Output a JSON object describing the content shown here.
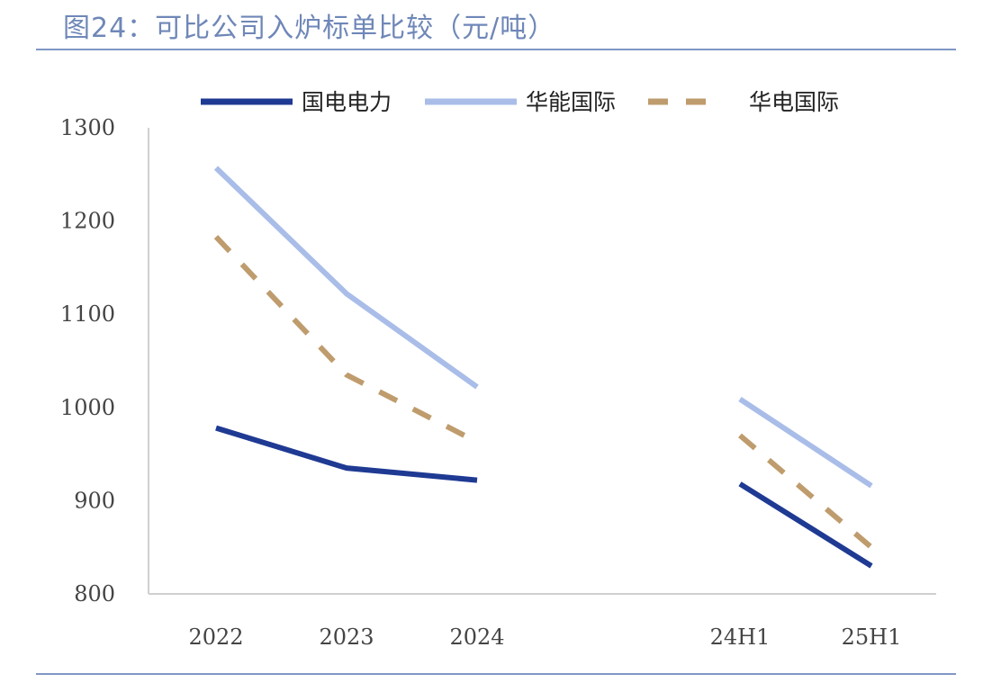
{
  "title": "图24：可比公司入炉标单比较（元/吨）",
  "chart_data": {
    "type": "line",
    "title": "图24：可比公司入炉标单比较（元/吨）",
    "categories": [
      "2022",
      "2023",
      "2024",
      "24H1",
      "25H1"
    ],
    "ylim": [
      800,
      1300
    ],
    "yticks": [
      800,
      900,
      1000,
      1100,
      1200,
      1300
    ],
    "grid": false,
    "legend_position": "top",
    "series": [
      {
        "name": "国电电力",
        "color": "#1f3a93",
        "dash": "solid",
        "segments": [
          [
            0,
            1,
            2
          ],
          [
            3,
            4
          ]
        ],
        "values": [
          978,
          935,
          922,
          918,
          830
        ]
      },
      {
        "name": "华能国际",
        "color": "#a9bde8",
        "dash": "solid",
        "segments": [
          [
            0,
            1,
            2
          ],
          [
            3,
            4
          ]
        ],
        "values": [
          1257,
          1122,
          1022,
          1009,
          916
        ]
      },
      {
        "name": "华电国际",
        "color": "#bf9c6d",
        "dash": "dashed",
        "segments": [
          [
            0,
            1,
            2
          ],
          [
            3,
            4
          ]
        ],
        "values": [
          1183,
          1035,
          963,
          970,
          850
        ]
      }
    ]
  }
}
